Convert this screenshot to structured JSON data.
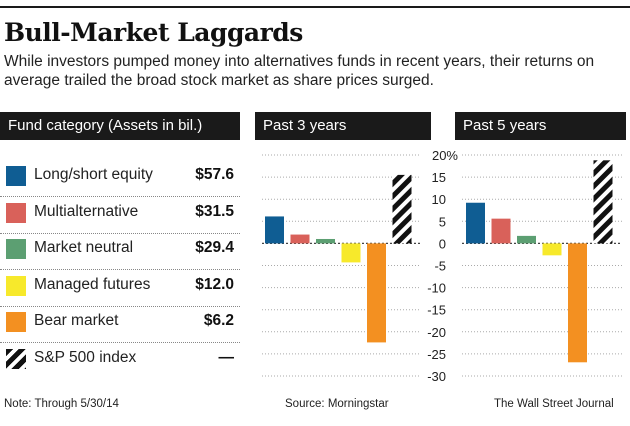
{
  "title": "Bull-Market Laggards",
  "subtitle": "While investors pumped money into alternatives funds in recent years, their returns on average trailed the broad stock market as share prices surged.",
  "legend_header": "Fund category (Assets in bil.)",
  "categories": [
    {
      "name": "Long/short equity",
      "assets": "$57.6",
      "color": "#0f5d93",
      "pattern": "solid"
    },
    {
      "name": "Multialternative",
      "assets": "$31.5",
      "color": "#d9615a",
      "pattern": "solid"
    },
    {
      "name": "Market neutral",
      "assets": "$29.4",
      "color": "#5c9f72",
      "pattern": "solid"
    },
    {
      "name": "Managed futures",
      "assets": "$12.0",
      "color": "#f7e92b",
      "pattern": "solid"
    },
    {
      "name": "Bear market",
      "assets": "$6.2",
      "color": "#f39021",
      "pattern": "solid"
    },
    {
      "name": "S&P 500 index",
      "assets": "—",
      "color": "#111111",
      "pattern": "hatched"
    }
  ],
  "chart_data": [
    {
      "type": "bar",
      "title": "Past 3 years",
      "categories": [
        "Long/short equity",
        "Multialternative",
        "Market neutral",
        "Managed futures",
        "Bear market",
        "S&P 500 index"
      ],
      "values": [
        6.1,
        2.0,
        1.0,
        -4.3,
        -22.4,
        15.5
      ],
      "ylim": [
        -30,
        20
      ],
      "yticks": [
        20,
        15,
        10,
        5,
        0,
        -5,
        -10,
        -15,
        -20,
        -25,
        -30
      ],
      "unit": "%"
    },
    {
      "type": "bar",
      "title": "Past 5 years",
      "categories": [
        "Long/short equity",
        "Multialternative",
        "Market neutral",
        "Managed futures",
        "Bear market",
        "S&P 500 index"
      ],
      "values": [
        9.2,
        5.6,
        1.7,
        -2.7,
        -26.9,
        18.8
      ],
      "ylim": [
        -30,
        20
      ],
      "yticks": [
        20,
        15,
        10,
        5,
        0,
        -5,
        -10,
        -15,
        -20,
        -25,
        -30
      ],
      "unit": "%"
    }
  ],
  "footer": {
    "note": "Note: Through 5/30/14",
    "source": "Source: Morningstar",
    "credit": "The Wall Street Journal"
  }
}
